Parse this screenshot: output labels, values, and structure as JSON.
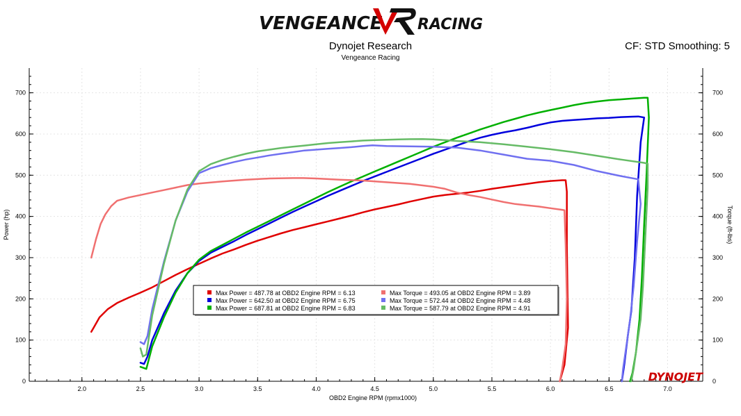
{
  "header": {
    "logo_text_left": "VENGEANCE",
    "logo_text_right": "RACING",
    "title": "Dynojet Research",
    "subtitle": "Vengeance Racing",
    "cf_text": "CF: STD Smoothing: 5",
    "watermark": "DYNOJET"
  },
  "colors": {
    "red": "#e00000",
    "blue": "#0000dd",
    "green": "#00b000",
    "light_red": "#f07070",
    "light_blue": "#7070f0",
    "light_green": "#66bb66"
  },
  "chart_data": {
    "type": "line",
    "xlabel": "OBD2 Engine RPM (rpmx1000)",
    "ylabel_left": "Power (hp)",
    "ylabel_right": "Torque (ft-lbs)",
    "xlim": [
      1.55,
      7.3
    ],
    "ylim": [
      0,
      760
    ],
    "xticks": [
      "2.0",
      "2.5",
      "3.0",
      "3.5",
      "4.0",
      "4.5",
      "5.0",
      "5.5",
      "6.0",
      "6.5",
      "7.0"
    ],
    "yticks": [
      "0",
      "100",
      "200",
      "300",
      "400",
      "500",
      "600",
      "700"
    ],
    "grid": true,
    "series": [
      {
        "name": "Max Power = 487.78 at OBD2 Engine RPM = 6.13",
        "color": "#e00000",
        "width": 2.5,
        "points": [
          [
            2.08,
            120
          ],
          [
            2.1,
            130
          ],
          [
            2.15,
            155
          ],
          [
            2.22,
            175
          ],
          [
            2.3,
            190
          ],
          [
            2.4,
            203
          ],
          [
            2.5,
            215
          ],
          [
            2.6,
            228
          ],
          [
            2.7,
            243
          ],
          [
            2.8,
            258
          ],
          [
            2.9,
            272
          ],
          [
            3.0,
            285
          ],
          [
            3.1,
            298
          ],
          [
            3.2,
            310
          ],
          [
            3.3,
            320
          ],
          [
            3.4,
            331
          ],
          [
            3.5,
            341
          ],
          [
            3.6,
            350
          ],
          [
            3.7,
            359
          ],
          [
            3.8,
            367
          ],
          [
            3.9,
            374
          ],
          [
            4.0,
            381
          ],
          [
            4.1,
            388
          ],
          [
            4.2,
            395
          ],
          [
            4.3,
            402
          ],
          [
            4.4,
            410
          ],
          [
            4.5,
            417
          ],
          [
            4.6,
            423
          ],
          [
            4.7,
            429
          ],
          [
            4.8,
            436
          ],
          [
            4.9,
            442
          ],
          [
            5.0,
            448
          ],
          [
            5.1,
            452
          ],
          [
            5.2,
            455
          ],
          [
            5.3,
            458
          ],
          [
            5.4,
            462
          ],
          [
            5.5,
            467
          ],
          [
            5.6,
            471
          ],
          [
            5.7,
            475
          ],
          [
            5.8,
            479
          ],
          [
            5.9,
            483
          ],
          [
            6.0,
            486
          ],
          [
            6.1,
            487.78
          ],
          [
            6.13,
            487.78
          ],
          [
            6.14,
            460
          ],
          [
            6.14,
            330
          ],
          [
            6.15,
            130
          ],
          [
            6.12,
            40
          ],
          [
            6.08,
            0
          ]
        ]
      },
      {
        "name": "Max Power = 642.50 at OBD2 Engine RPM = 6.75",
        "color": "#0000dd",
        "width": 2.5,
        "points": [
          [
            2.5,
            45
          ],
          [
            2.53,
            42
          ],
          [
            2.56,
            60
          ],
          [
            2.6,
            100
          ],
          [
            2.7,
            165
          ],
          [
            2.8,
            220
          ],
          [
            2.9,
            262
          ],
          [
            3.0,
            292
          ],
          [
            3.1,
            312
          ],
          [
            3.2,
            326
          ],
          [
            3.3,
            340
          ],
          [
            3.4,
            355
          ],
          [
            3.5,
            369
          ],
          [
            3.6,
            383
          ],
          [
            3.7,
            397
          ],
          [
            3.8,
            411
          ],
          [
            3.9,
            424
          ],
          [
            4.0,
            437
          ],
          [
            4.1,
            450
          ],
          [
            4.2,
            462
          ],
          [
            4.3,
            474
          ],
          [
            4.4,
            486
          ],
          [
            4.5,
            497
          ],
          [
            4.6,
            508
          ],
          [
            4.7,
            519
          ],
          [
            4.8,
            530
          ],
          [
            4.9,
            541
          ],
          [
            5.0,
            552
          ],
          [
            5.1,
            562
          ],
          [
            5.2,
            572
          ],
          [
            5.3,
            582
          ],
          [
            5.4,
            591
          ],
          [
            5.5,
            598
          ],
          [
            5.6,
            604
          ],
          [
            5.7,
            609
          ],
          [
            5.8,
            615
          ],
          [
            5.9,
            622
          ],
          [
            6.0,
            628
          ],
          [
            6.1,
            632
          ],
          [
            6.2,
            634
          ],
          [
            6.3,
            636
          ],
          [
            6.4,
            638
          ],
          [
            6.5,
            639
          ],
          [
            6.6,
            641
          ],
          [
            6.7,
            642
          ],
          [
            6.75,
            642.5
          ],
          [
            6.8,
            640
          ],
          [
            6.77,
            580
          ],
          [
            6.74,
            450
          ],
          [
            6.72,
            300
          ],
          [
            6.69,
            170
          ],
          [
            6.66,
            110
          ],
          [
            6.63,
            40
          ],
          [
            6.61,
            0
          ]
        ]
      },
      {
        "name": "Max Power = 687.81 at OBD2 Engine RPM = 6.83",
        "color": "#00b000",
        "width": 2.5,
        "points": [
          [
            2.5,
            35
          ],
          [
            2.55,
            30
          ],
          [
            2.6,
            85
          ],
          [
            2.7,
            155
          ],
          [
            2.8,
            215
          ],
          [
            2.9,
            262
          ],
          [
            3.0,
            295
          ],
          [
            3.1,
            316
          ],
          [
            3.2,
            331
          ],
          [
            3.3,
            346
          ],
          [
            3.4,
            361
          ],
          [
            3.5,
            375
          ],
          [
            3.6,
            389
          ],
          [
            3.7,
            403
          ],
          [
            3.8,
            417
          ],
          [
            3.9,
            431
          ],
          [
            4.0,
            445
          ],
          [
            4.1,
            459
          ],
          [
            4.2,
            472
          ],
          [
            4.3,
            485
          ],
          [
            4.4,
            497
          ],
          [
            4.5,
            509
          ],
          [
            4.6,
            521
          ],
          [
            4.7,
            533
          ],
          [
            4.8,
            545
          ],
          [
            4.9,
            557
          ],
          [
            5.0,
            569
          ],
          [
            5.1,
            580
          ],
          [
            5.2,
            591
          ],
          [
            5.3,
            601
          ],
          [
            5.4,
            611
          ],
          [
            5.5,
            620
          ],
          [
            5.6,
            629
          ],
          [
            5.7,
            637
          ],
          [
            5.8,
            645
          ],
          [
            5.9,
            652
          ],
          [
            6.0,
            658
          ],
          [
            6.1,
            664
          ],
          [
            6.2,
            670
          ],
          [
            6.3,
            675
          ],
          [
            6.4,
            679
          ],
          [
            6.5,
            682
          ],
          [
            6.6,
            684
          ],
          [
            6.7,
            686
          ],
          [
            6.8,
            687.81
          ],
          [
            6.83,
            687.81
          ],
          [
            6.84,
            640
          ],
          [
            6.82,
            500
          ],
          [
            6.8,
            380
          ],
          [
            6.78,
            250
          ],
          [
            6.76,
            150
          ],
          [
            6.73,
            70
          ],
          [
            6.7,
            20
          ],
          [
            6.68,
            0
          ]
        ]
      },
      {
        "name": "Max Torque = 493.05 at OBD2 Engine RPM = 3.89",
        "color": "#f07070",
        "width": 2.5,
        "points": [
          [
            2.08,
            300
          ],
          [
            2.12,
            345
          ],
          [
            2.16,
            382
          ],
          [
            2.2,
            405
          ],
          [
            2.25,
            425
          ],
          [
            2.3,
            438
          ],
          [
            2.4,
            446
          ],
          [
            2.5,
            452
          ],
          [
            2.6,
            458
          ],
          [
            2.7,
            464
          ],
          [
            2.8,
            470
          ],
          [
            2.9,
            476
          ],
          [
            3.0,
            480
          ],
          [
            3.2,
            485
          ],
          [
            3.4,
            489
          ],
          [
            3.6,
            492
          ],
          [
            3.8,
            493
          ],
          [
            3.89,
            493.05
          ],
          [
            4.0,
            492
          ],
          [
            4.2,
            489
          ],
          [
            4.4,
            487
          ],
          [
            4.6,
            483
          ],
          [
            4.8,
            479
          ],
          [
            5.0,
            472
          ],
          [
            5.1,
            467
          ],
          [
            5.2,
            458
          ],
          [
            5.3,
            452
          ],
          [
            5.4,
            447
          ],
          [
            5.5,
            441
          ],
          [
            5.6,
            435
          ],
          [
            5.7,
            430
          ],
          [
            5.8,
            427
          ],
          [
            5.9,
            424
          ],
          [
            6.0,
            420
          ],
          [
            6.1,
            416
          ],
          [
            6.12,
            415
          ],
          [
            6.13,
            330
          ],
          [
            6.14,
            200
          ],
          [
            6.13,
            90
          ],
          [
            6.1,
            30
          ],
          [
            6.08,
            0
          ]
        ]
      },
      {
        "name": "Max Torque = 572.44 at OBD2 Engine RPM = 4.48",
        "color": "#7070f0",
        "width": 2.5,
        "points": [
          [
            2.5,
            95
          ],
          [
            2.53,
            90
          ],
          [
            2.56,
            110
          ],
          [
            2.6,
            175
          ],
          [
            2.7,
            290
          ],
          [
            2.8,
            390
          ],
          [
            2.9,
            460
          ],
          [
            3.0,
            505
          ],
          [
            3.1,
            517
          ],
          [
            3.2,
            525
          ],
          [
            3.3,
            532
          ],
          [
            3.4,
            538
          ],
          [
            3.5,
            543
          ],
          [
            3.6,
            548
          ],
          [
            3.7,
            552
          ],
          [
            3.8,
            556
          ],
          [
            3.9,
            560
          ],
          [
            4.0,
            562
          ],
          [
            4.1,
            564
          ],
          [
            4.2,
            566
          ],
          [
            4.3,
            568
          ],
          [
            4.4,
            571
          ],
          [
            4.48,
            572.44
          ],
          [
            4.6,
            571
          ],
          [
            4.8,
            570
          ],
          [
            5.0,
            569
          ],
          [
            5.2,
            567
          ],
          [
            5.4,
            560
          ],
          [
            5.6,
            550
          ],
          [
            5.8,
            540
          ],
          [
            6.0,
            535
          ],
          [
            6.2,
            525
          ],
          [
            6.4,
            510
          ],
          [
            6.6,
            498
          ],
          [
            6.75,
            490
          ],
          [
            6.77,
            430
          ],
          [
            6.74,
            340
          ],
          [
            6.71,
            230
          ],
          [
            6.68,
            150
          ],
          [
            6.65,
            90
          ],
          [
            6.62,
            30
          ],
          [
            6.61,
            0
          ]
        ]
      },
      {
        "name": "Max Torque = 587.79 at OBD2 Engine RPM = 4.91",
        "color": "#66bb66",
        "width": 2.5,
        "points": [
          [
            2.5,
            80
          ],
          [
            2.52,
            60
          ],
          [
            2.55,
            65
          ],
          [
            2.6,
            160
          ],
          [
            2.7,
            285
          ],
          [
            2.8,
            390
          ],
          [
            2.9,
            465
          ],
          [
            3.0,
            510
          ],
          [
            3.1,
            527
          ],
          [
            3.2,
            537
          ],
          [
            3.3,
            545
          ],
          [
            3.4,
            552
          ],
          [
            3.5,
            558
          ],
          [
            3.6,
            562
          ],
          [
            3.7,
            566
          ],
          [
            3.8,
            569
          ],
          [
            3.9,
            572
          ],
          [
            4.0,
            575
          ],
          [
            4.1,
            578
          ],
          [
            4.2,
            580
          ],
          [
            4.3,
            582
          ],
          [
            4.4,
            584
          ],
          [
            4.5,
            585
          ],
          [
            4.6,
            586
          ],
          [
            4.7,
            587
          ],
          [
            4.8,
            587.5
          ],
          [
            4.91,
            587.79
          ],
          [
            5.0,
            587
          ],
          [
            5.1,
            585
          ],
          [
            5.2,
            583
          ],
          [
            5.4,
            580
          ],
          [
            5.6,
            575
          ],
          [
            5.8,
            569
          ],
          [
            6.0,
            563
          ],
          [
            6.2,
            556
          ],
          [
            6.4,
            547
          ],
          [
            6.6,
            538
          ],
          [
            6.8,
            530
          ],
          [
            6.83,
            528
          ],
          [
            6.83,
            470
          ],
          [
            6.81,
            350
          ],
          [
            6.79,
            230
          ],
          [
            6.77,
            150
          ],
          [
            6.74,
            90
          ],
          [
            6.71,
            30
          ],
          [
            6.69,
            0
          ]
        ]
      }
    ]
  }
}
